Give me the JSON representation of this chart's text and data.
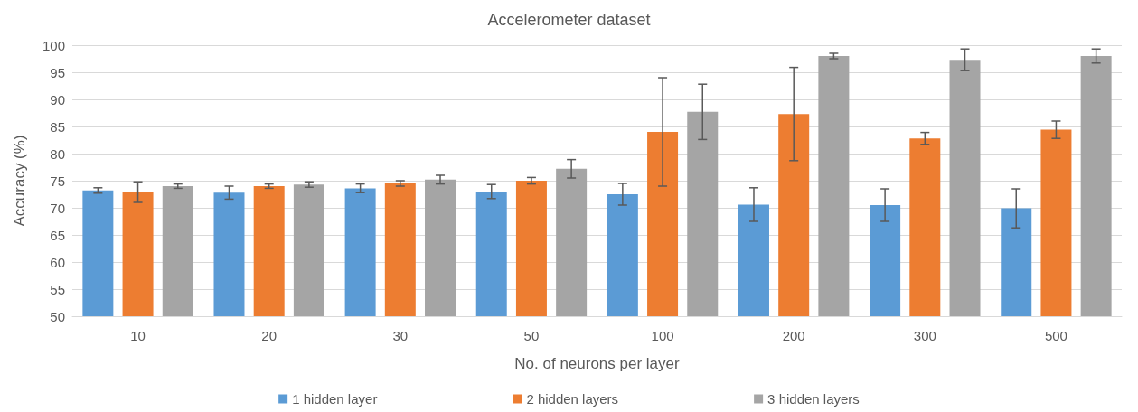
{
  "chart_data": {
    "type": "bar",
    "title": "Accelerometer dataset",
    "xlabel": "No. of neurons per layer",
    "ylabel": "Accuracy (%)",
    "categories": [
      "10",
      "20",
      "30",
      "50",
      "100",
      "200",
      "300",
      "500"
    ],
    "series": [
      {
        "name": "1 hidden layer",
        "color": "#5b9bd5",
        "values": [
          73.2,
          72.8,
          73.6,
          73.0,
          72.5,
          70.6,
          70.5,
          69.9
        ],
        "errors": [
          0.5,
          1.2,
          0.8,
          1.3,
          2.0,
          3.1,
          3.0,
          3.6
        ]
      },
      {
        "name": "2 hidden layers",
        "color": "#ed7d31",
        "values": [
          72.9,
          74.0,
          74.5,
          75.0,
          84.0,
          87.3,
          82.8,
          84.4
        ],
        "errors": [
          1.9,
          0.4,
          0.5,
          0.6,
          10.0,
          8.6,
          1.1,
          1.6
        ]
      },
      {
        "name": "3 hidden layers",
        "color": "#a5a5a5",
        "values": [
          74.0,
          74.3,
          75.2,
          77.2,
          87.7,
          98.0,
          97.3,
          98.0
        ],
        "errors": [
          0.4,
          0.5,
          0.8,
          1.7,
          5.1,
          0.5,
          2.0,
          1.3
        ]
      }
    ],
    "ylim": [
      50,
      100
    ],
    "yticks": [
      50,
      55,
      60,
      65,
      70,
      75,
      80,
      85,
      90,
      95,
      100
    ],
    "grid": "y",
    "legend": "bottom"
  }
}
